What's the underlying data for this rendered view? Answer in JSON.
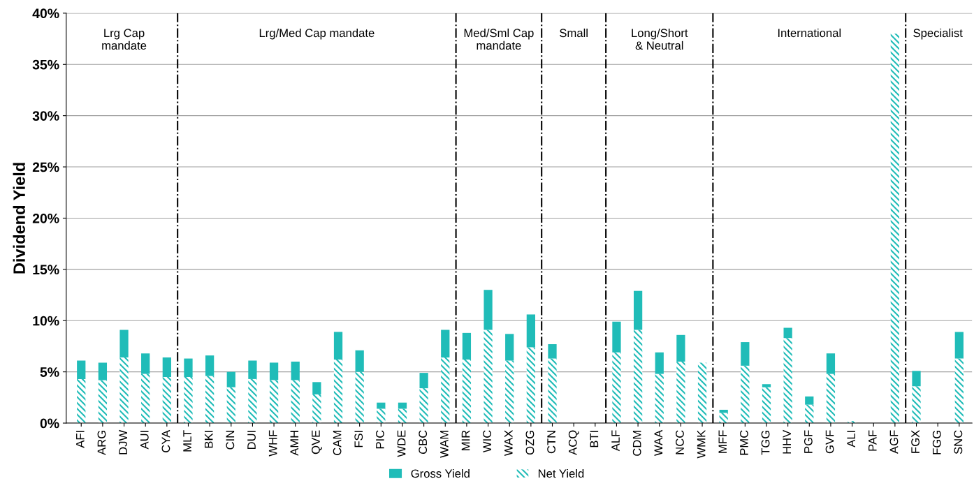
{
  "chart_data": {
    "type": "bar",
    "stacked": true,
    "ylabel": "Dividend Yield",
    "categories": [
      "AFI",
      "ARG",
      "DJW",
      "AUI",
      "CYA",
      "MLT",
      "BKI",
      "CIN",
      "DUI",
      "WHF",
      "AMH",
      "QVE",
      "CAM",
      "FSI",
      "PIC",
      "WDE",
      "CBC",
      "WAM",
      "MIR",
      "WIC",
      "WAX",
      "OZG",
      "CTN",
      "ACQ",
      "BTI",
      "ALF",
      "CDM",
      "WAA",
      "NCC",
      "WMK",
      "MFF",
      "PMC",
      "TGG",
      "HHV",
      "PGF",
      "GVF",
      "ALI",
      "PAF",
      "AGF",
      "FGX",
      "FGG",
      "SNC"
    ],
    "series": [
      {
        "name": "Net Yield",
        "color": "#20bcb8",
        "values": [
          4.3,
          4.2,
          6.4,
          4.8,
          4.5,
          4.5,
          4.6,
          3.5,
          4.3,
          4.2,
          4.2,
          2.8,
          6.2,
          5.0,
          1.4,
          1.4,
          3.4,
          6.4,
          6.2,
          9.1,
          6.1,
          7.4,
          6.3,
          0,
          0,
          6.9,
          9.1,
          4.8,
          6.0,
          5.9,
          1.0,
          5.6,
          3.5,
          8.3,
          1.8,
          4.8,
          0.2,
          0,
          38.0,
          3.6,
          0,
          6.3
        ]
      },
      {
        "name": "Gross Yield",
        "color": "#20bcb8",
        "values": [
          1.8,
          1.7,
          2.7,
          2.0,
          1.9,
          1.8,
          2.0,
          1.5,
          1.8,
          1.7,
          1.8,
          1.2,
          2.7,
          2.1,
          0.6,
          0.6,
          1.5,
          2.7,
          2.6,
          3.9,
          2.6,
          3.2,
          1.4,
          0,
          0,
          3.0,
          3.8,
          2.1,
          2.6,
          0,
          0.3,
          2.3,
          0.3,
          1.0,
          0.8,
          2.0,
          0,
          0,
          0,
          1.5,
          0,
          2.6
        ]
      }
    ],
    "ylim": [
      0,
      40
    ],
    "yticks": [
      {
        "value": 0,
        "label": "0%"
      },
      {
        "value": 5,
        "label": "5%"
      },
      {
        "value": 10,
        "label": "10%"
      },
      {
        "value": 15,
        "label": "15%"
      },
      {
        "value": 20,
        "label": "20%"
      },
      {
        "value": 25,
        "label": "25%"
      },
      {
        "value": 30,
        "label": "30%"
      },
      {
        "value": 35,
        "label": "35%"
      },
      {
        "value": 40,
        "label": "40%"
      }
    ],
    "grid": "y",
    "legend": "bottom",
    "annotations": [
      "Lrg Cap\nmandate",
      "Lrg/Med Cap mandate",
      "Med/Sml Cap\nmandate",
      "Small",
      "Long/Short\n& Neutral",
      "International",
      "Specialist"
    ]
  }
}
